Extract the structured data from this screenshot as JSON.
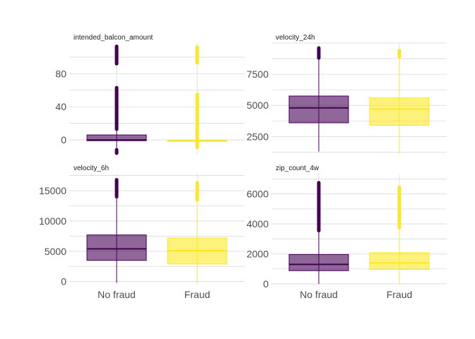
{
  "colors": {
    "no_fraud": "#440154",
    "fraud": "#FDE725",
    "grid": "#d9d9d9",
    "background": "#ffffff"
  },
  "chart_data": {
    "type": "boxplot",
    "categories": [
      "No fraud",
      "Fraud"
    ],
    "grid": true,
    "legend": "none",
    "panels": [
      {
        "title": "intended_balcon_amount",
        "ylim": [
          -17,
          117
        ],
        "yticks": [
          0,
          40,
          80
        ],
        "ytick_labels": [
          "0",
          "40",
          "80"
        ],
        "boxes": [
          {
            "category": "No fraud",
            "whisker_low": -12,
            "q1": -1,
            "median": 0,
            "q3": 6,
            "whisker_high": 13,
            "outlier_ranges": [
              [
                -16,
                -12
              ],
              [
                13,
                63
              ],
              [
                92,
                113
              ]
            ]
          },
          {
            "category": "Fraud",
            "whisker_low": -1,
            "q1": -1,
            "median": -1,
            "q3": -1,
            "whisker_high": 0,
            "outlier_ranges": [
              [
                -9,
                -1
              ],
              [
                0,
                55
              ],
              [
                93,
                112
              ]
            ]
          }
        ]
      },
      {
        "title": "velocity_24h",
        "ylim": [
          1100,
          10000
        ],
        "yticks": [
          2500,
          5000,
          7500
        ],
        "ytick_labels": [
          "2500",
          "5000",
          "7500"
        ],
        "boxes": [
          {
            "category": "No fraud",
            "whisker_low": 1300,
            "q1": 3600,
            "median": 4800,
            "q3": 5750,
            "whisker_high": 8800,
            "outlier_ranges": [
              [
                8800,
                9600
              ]
            ]
          },
          {
            "category": "Fraud",
            "whisker_low": 1150,
            "q1": 3400,
            "median": 4700,
            "q3": 5600,
            "whisker_high": 8900,
            "outlier_ranges": [
              [
                8900,
                9400
              ]
            ]
          }
        ]
      },
      {
        "title": "velocity_6h",
        "ylim": [
          -500,
          17800
        ],
        "yticks": [
          0,
          5000,
          10000,
          15000
        ],
        "ytick_labels": [
          "0",
          "5000",
          "10000",
          "15000"
        ],
        "boxes": [
          {
            "category": "No fraud",
            "whisker_low": -200,
            "q1": 3500,
            "median": 5400,
            "q3": 7700,
            "whisker_high": 14000,
            "outlier_ranges": [
              [
                14000,
                16800
              ]
            ]
          },
          {
            "category": "Fraud",
            "whisker_low": -100,
            "q1": 2900,
            "median": 5100,
            "q3": 7200,
            "whisker_high": 13500,
            "outlier_ranges": [
              [
                13500,
                16300
              ]
            ]
          }
        ]
      },
      {
        "title": "zip_count_4w",
        "ylim": [
          -50,
          7350
        ],
        "yticks": [
          0,
          2000,
          4000,
          6000
        ],
        "ytick_labels": [
          "0",
          "2000",
          "4000",
          "6000"
        ],
        "boxes": [
          {
            "category": "No fraud",
            "whisker_low": 0,
            "q1": 880,
            "median": 1300,
            "q3": 1960,
            "whisker_high": 3550,
            "outlier_ranges": [
              [
                3550,
                6750
              ]
            ]
          },
          {
            "category": "Fraud",
            "whisker_low": 0,
            "q1": 960,
            "median": 1400,
            "q3": 2080,
            "whisker_high": 3750,
            "outlier_ranges": [
              [
                3750,
                6450
              ]
            ]
          }
        ]
      }
    ]
  }
}
